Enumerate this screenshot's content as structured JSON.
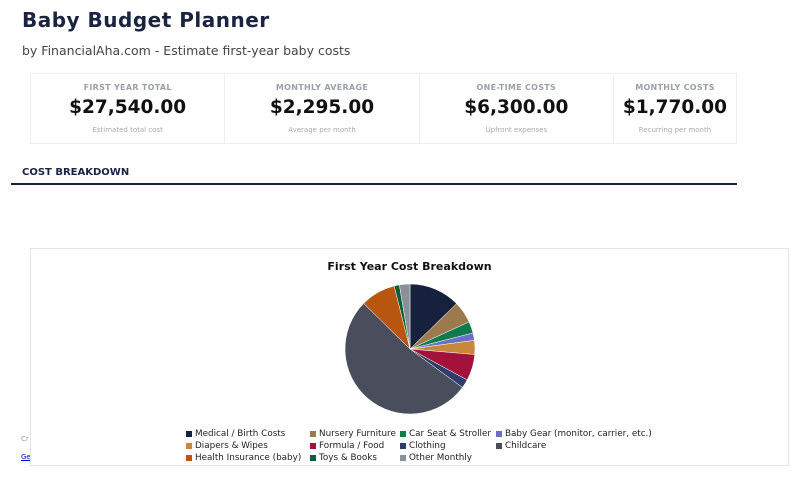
{
  "header": {
    "title": "Baby Budget Planner",
    "subtitle": "by FinancialAha.com - Estimate first-year baby costs"
  },
  "stats": [
    {
      "label": "FIRST YEAR TOTAL",
      "value": "$27,540.00",
      "note": "Estimated total cost"
    },
    {
      "label": "MONTHLY AVERAGE",
      "value": "$2,295.00",
      "note": "Average per month"
    },
    {
      "label": "ONE-TIME COSTS",
      "value": "$6,300.00",
      "note": "Upfront expenses"
    },
    {
      "label": "MONTHLY COSTS",
      "value": "$1,770.00",
      "note": "Recurring per month"
    }
  ],
  "section": {
    "title": "COST BREAKDOWN"
  },
  "behind": {
    "text1": "Cr",
    "link": "Ge"
  },
  "chart_data": {
    "type": "pie",
    "title": "First Year Cost Breakdown",
    "legend": "bottom",
    "categories": [
      "Medical / Birth Costs",
      "Nursery Furniture",
      "Car Seat & Stroller",
      "Baby Gear (monitor, carrier, etc.)",
      "Diapers & Wipes",
      "Formula / Food",
      "Clothing",
      "Childcare",
      "Health Insurance (baby)",
      "Toys & Books",
      "Other Monthly"
    ],
    "values": [
      3500,
      1500,
      800,
      500,
      960,
      1800,
      600,
      14400,
      2400,
      360,
      720
    ],
    "colors": [
      "#16213e",
      "#9c7a4e",
      "#0f7a4e",
      "#6a6fc0",
      "#c8873a",
      "#a3123a",
      "#2e3d6b",
      "#4a4e5c",
      "#b8560f",
      "#0b5e3a",
      "#8a8f99"
    ]
  }
}
